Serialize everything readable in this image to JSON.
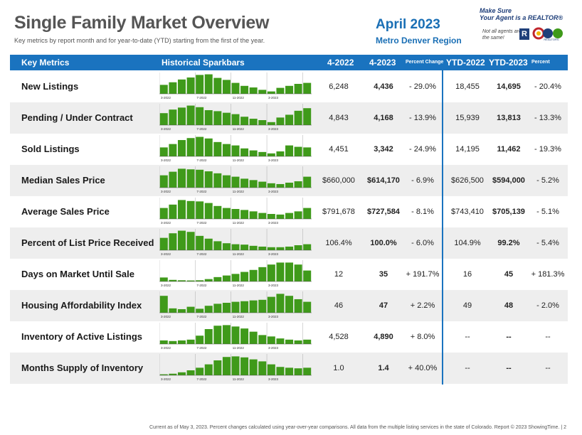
{
  "title": "Single Family Market Overview",
  "subtitle": "Key metrics by report month and for year-to-date (YTD) starting from the first of the year.",
  "period": "April 2023",
  "region": "Metro Denver Region",
  "logo": {
    "line1": "Make Sure",
    "line2": "Your Agent is a REALTOR®",
    "line3": "Not all agents are the same!",
    "r_mark": "R",
    "badge_text": "REALTORS"
  },
  "header": {
    "key_metrics": "Key Metrics",
    "sparkbars": "Historical Sparkbars",
    "col1": "4-2022",
    "col2": "4-2023",
    "col3": "Percent Change",
    "col4": "YTD-2022",
    "col5": "YTD-2023",
    "col6": "Percent Change"
  },
  "spark_labels": [
    "3-2022",
    "7-2022",
    "11-2022",
    "3-2023"
  ],
  "colors": {
    "bar": "#3f9a1a",
    "header": "#1a73bf",
    "accent": "#1a6fb5"
  },
  "metrics": [
    {
      "name": "New Listings",
      "v4_2022": "6,248",
      "v4_2023": "4,436",
      "pct": "- 29.0%",
      "ytd2022": "18,455",
      "ytd2023": "14,695",
      "ytd_pct": "- 20.4%",
      "spark": [
        0.45,
        0.58,
        0.72,
        0.82,
        0.95,
        0.98,
        0.8,
        0.7,
        0.55,
        0.4,
        0.32,
        0.2,
        0.12,
        0.3,
        0.4,
        0.5,
        0.55
      ]
    },
    {
      "name": "Pending / Under Contract",
      "v4_2022": "4,843",
      "v4_2023": "4,168",
      "pct": "- 13.9%",
      "ytd2022": "15,939",
      "ytd2023": "13,813",
      "ytd_pct": "- 13.3%",
      "spark": [
        0.6,
        0.78,
        0.88,
        0.98,
        0.9,
        0.75,
        0.7,
        0.62,
        0.55,
        0.42,
        0.32,
        0.25,
        0.15,
        0.38,
        0.52,
        0.72,
        0.85
      ]
    },
    {
      "name": "Sold Listings",
      "v4_2022": "4,451",
      "v4_2023": "3,342",
      "pct": "- 24.9%",
      "ytd2022": "14,195",
      "ytd2023": "11,462",
      "ytd_pct": "- 19.3%",
      "spark": [
        0.45,
        0.62,
        0.82,
        0.92,
        0.98,
        0.9,
        0.72,
        0.62,
        0.55,
        0.4,
        0.3,
        0.22,
        0.15,
        0.25,
        0.55,
        0.48,
        0.45
      ]
    },
    {
      "name": "Median Sales Price",
      "v4_2022": "$660,000",
      "v4_2023": "$614,170",
      "pct": "- 6.9%",
      "ytd2022": "$626,500",
      "ytd2023": "$594,000",
      "ytd_pct": "- 5.2%",
      "spark": [
        0.62,
        0.8,
        0.95,
        0.92,
        0.9,
        0.82,
        0.72,
        0.62,
        0.55,
        0.45,
        0.38,
        0.3,
        0.22,
        0.18,
        0.25,
        0.32,
        0.55
      ]
    },
    {
      "name": "Average Sales Price",
      "v4_2022": "$791,678",
      "v4_2023": "$727,584",
      "pct": "- 8.1%",
      "ytd2022": "$743,410",
      "ytd2023": "$705,139",
      "ytd_pct": "- 5.1%",
      "spark": [
        0.55,
        0.72,
        0.95,
        0.9,
        0.88,
        0.8,
        0.65,
        0.55,
        0.5,
        0.45,
        0.38,
        0.3,
        0.25,
        0.22,
        0.3,
        0.38,
        0.55
      ]
    },
    {
      "name": "Percent of List Price Received",
      "v4_2022": "106.4%",
      "v4_2023": "100.0%",
      "pct": "- 6.0%",
      "ytd2022": "104.9%",
      "ytd2023": "99.2%",
      "ytd_pct": "- 5.4%",
      "spark": [
        0.62,
        0.85,
        0.98,
        0.92,
        0.72,
        0.58,
        0.45,
        0.35,
        0.3,
        0.28,
        0.22,
        0.18,
        0.15,
        0.15,
        0.18,
        0.25,
        0.3
      ]
    },
    {
      "name": "Days on Market Until Sale",
      "v4_2022": "12",
      "v4_2023": "35",
      "pct": "+ 191.7%",
      "ytd2022": "16",
      "ytd2023": "45",
      "ytd_pct": "+ 181.3%",
      "spark": [
        0.2,
        0.08,
        0.06,
        0.05,
        0.06,
        0.12,
        0.22,
        0.3,
        0.38,
        0.48,
        0.58,
        0.72,
        0.85,
        0.95,
        0.95,
        0.85,
        0.55
      ]
    },
    {
      "name": "Housing Affordability Index",
      "v4_2022": "46",
      "v4_2023": "47",
      "pct": "+ 2.2%",
      "ytd2022": "49",
      "ytd2023": "48",
      "ytd_pct": "- 2.0%",
      "spark": [
        0.85,
        0.22,
        0.18,
        0.3,
        0.2,
        0.35,
        0.45,
        0.5,
        0.55,
        0.58,
        0.62,
        0.65,
        0.8,
        0.95,
        0.85,
        0.68,
        0.55
      ]
    },
    {
      "name": "Inventory of Active Listings",
      "v4_2022": "4,528",
      "v4_2023": "4,890",
      "pct": "+ 8.0%",
      "ytd2022": "--",
      "ytd2023": "--",
      "ytd_pct": "--",
      "spark": [
        0.18,
        0.15,
        0.18,
        0.22,
        0.42,
        0.75,
        0.92,
        0.95,
        0.88,
        0.78,
        0.62,
        0.45,
        0.38,
        0.28,
        0.22,
        0.18,
        0.22
      ]
    },
    {
      "name": "Months Supply of Inventory",
      "v4_2022": "1.0",
      "v4_2023": "1.4",
      "pct": "+ 40.0%",
      "ytd2022": "--",
      "ytd2023": "--",
      "ytd_pct": "--",
      "spark": [
        0.05,
        0.08,
        0.15,
        0.25,
        0.38,
        0.55,
        0.75,
        0.92,
        0.95,
        0.9,
        0.8,
        0.7,
        0.55,
        0.42,
        0.38,
        0.35,
        0.38
      ]
    }
  ],
  "footer": "Current as of May 3, 2023. Percent changes calculated using year-over-year comparisons. All data from the multiple listing services in the state of Colorado. Report © 2023 ShowingTime. | 2"
}
